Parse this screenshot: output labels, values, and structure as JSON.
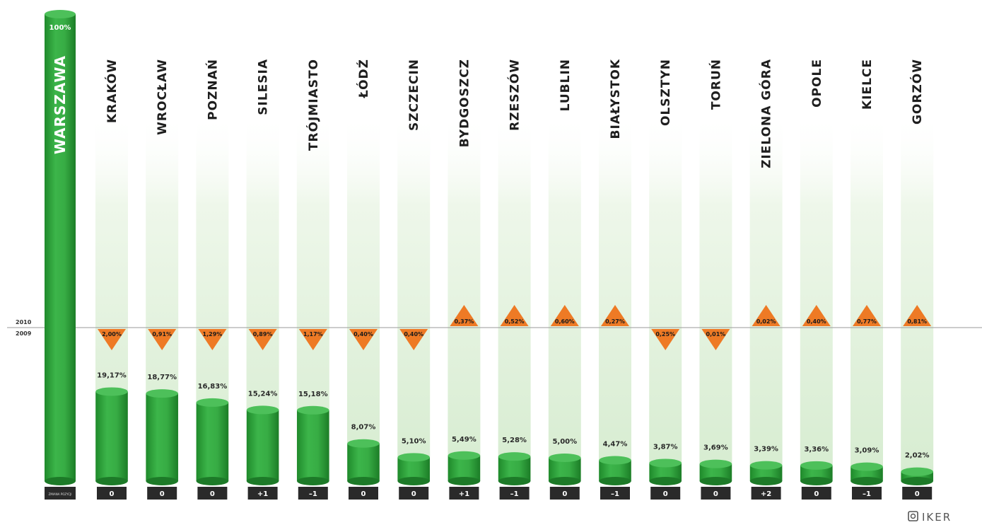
{
  "chart_data": {
    "type": "bar",
    "year_top": "2010",
    "year_bottom": "2009",
    "lead": {
      "category": "WARSZAWA",
      "value_label": "100%",
      "rank_label": "ZMIANA POZYCJI"
    },
    "categories": [
      "KRAKÓW",
      "WROCŁAW",
      "POZNAŃ",
      "SILESIA",
      "TRÓJMIASTO",
      "ŁÓDŹ",
      "SZCZECIN",
      "BYDGOSZCZ",
      "RZESZÓW",
      "LUBLIN",
      "BIAŁYSTOK",
      "OLSZTYN",
      "TORUŃ",
      "ZIELONA GÓRA",
      "OPOLE",
      "KIELCE",
      "GORZÓW"
    ],
    "values": [
      19.17,
      18.77,
      16.83,
      15.24,
      15.18,
      8.07,
      5.1,
      5.49,
      5.28,
      5.0,
      4.47,
      3.87,
      3.69,
      3.39,
      3.36,
      3.09,
      2.02
    ],
    "value_labels": [
      "19,17%",
      "18,77%",
      "16,83%",
      "15,24%",
      "15,18%",
      "8,07%",
      "5,10%",
      "5,49%",
      "5,28%",
      "5,00%",
      "4,47%",
      "3,87%",
      "3,69%",
      "3,39%",
      "3,36%",
      "3,09%",
      "2,02%"
    ],
    "changes": [
      -2.0,
      -0.91,
      -1.29,
      -0.89,
      -1.17,
      -0.4,
      -0.4,
      0.37,
      0.52,
      0.6,
      0.27,
      -0.25,
      -0.01,
      0.02,
      0.4,
      0.77,
      0.81
    ],
    "change_labels": [
      "2,00%",
      "0,91%",
      "1,29%",
      "0,89%",
      "1,17%",
      "0,40%",
      "0,40%",
      "0,37%",
      "0,52%",
      "0,60%",
      "0,27%",
      "0,25%",
      "0,01%",
      "0,02%",
      "0,40%",
      "0,77%",
      "0,81%"
    ],
    "rank_changes": [
      "0",
      "0",
      "0",
      "+1",
      "–1",
      "0",
      "0",
      "+1",
      "–1",
      "0",
      "–1",
      "0",
      "0",
      "+2",
      "0",
      "–1",
      "0"
    ],
    "ylim": [
      0,
      100
    ]
  },
  "watermark": "IKER",
  "colors": {
    "bar": "#2e9f3a",
    "bar_light": "#4dc05a",
    "bar_dark": "#1d7a28",
    "triangle": "#ee7a25",
    "column_fill": "#dcefd6",
    "rank_box": "#2a2a2a",
    "baseline": "#9a9a9a"
  }
}
